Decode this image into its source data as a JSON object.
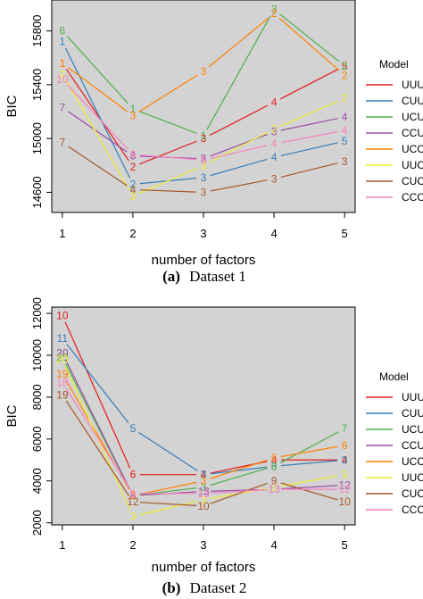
{
  "captions": [
    {
      "tag": "(a)",
      "text": "Dataset 1"
    },
    {
      "tag": "(b)",
      "text": "Dataset 2"
    }
  ],
  "legend": {
    "title": "Model",
    "entries": [
      {
        "name": "UUU",
        "color": "#e41a1c"
      },
      {
        "name": "CUU",
        "color": "#377eb8"
      },
      {
        "name": "UCU",
        "color": "#4daf4a"
      },
      {
        "name": "CCU",
        "color": "#984ea3"
      },
      {
        "name": "UCC",
        "color": "#ff7f00"
      },
      {
        "name": "UUC",
        "color": "#eeee33"
      },
      {
        "name": "CUC",
        "color": "#a65628"
      },
      {
        "name": "CCC",
        "color": "#f781bf"
      }
    ]
  },
  "chart_data": [
    {
      "type": "line",
      "panel": "Dataset 1",
      "xlabel": "number of factors",
      "ylabel": "BIC",
      "x": [
        1,
        2,
        3,
        4,
        5
      ],
      "xlim": [
        0.85,
        5.15
      ],
      "ylim": [
        14450,
        16030
      ],
      "yticks": [
        14600,
        15000,
        15400,
        15800
      ],
      "grid": false,
      "legend_position": "right",
      "series": [
        {
          "name": "UUU",
          "values": [
            15560,
            14790,
            15000,
            15270,
            15540
          ],
          "point_labels": [
            "1",
            "2",
            "3",
            "4",
            "5"
          ]
        },
        {
          "name": "CUU",
          "values": [
            15720,
            14660,
            14710,
            14860,
            14980
          ],
          "point_labels": [
            "1",
            "2",
            "3",
            "4",
            "5"
          ]
        },
        {
          "name": "UCU",
          "values": [
            15800,
            15220,
            15020,
            15960,
            15540
          ],
          "point_labels": [
            "6",
            "1",
            "1",
            "3",
            "2"
          ]
        },
        {
          "name": "CCU",
          "values": [
            15230,
            14870,
            14850,
            15050,
            15160
          ],
          "point_labels": [
            "7",
            "8",
            "3",
            "3",
            "4"
          ]
        },
        {
          "name": "UCC",
          "values": [
            15560,
            15170,
            15500,
            15930,
            15470
          ],
          "point_labels": [
            "1",
            "3",
            "3",
            "2",
            "2"
          ]
        },
        {
          "name": "UUC",
          "values": [
            15480,
            14570,
            14800,
            15070,
            15300
          ],
          "point_labels": [
            "2",
            "3",
            "3",
            "2",
            "2"
          ]
        },
        {
          "name": "CUC",
          "values": [
            14970,
            14620,
            14600,
            14700,
            14830
          ],
          "point_labels": [
            "7",
            "4",
            "3",
            "3",
            "3"
          ]
        },
        {
          "name": "CCC",
          "values": [
            15440,
            14880,
            14840,
            14960,
            15060
          ],
          "point_labels": [
            "10",
            "6",
            "5",
            "4",
            "4"
          ]
        }
      ]
    },
    {
      "type": "line",
      "panel": "Dataset 2",
      "xlabel": "number of factors",
      "ylabel": "BIC",
      "x": [
        1,
        2,
        3,
        4,
        5
      ],
      "xlim": [
        0.85,
        5.15
      ],
      "ylim": [
        1900,
        12300
      ],
      "yticks": [
        2000,
        4000,
        6000,
        8000,
        10000,
        12000
      ],
      "grid": false,
      "legend_position": "right",
      "series": [
        {
          "name": "UUU",
          "values": [
            11900,
            4300,
            4300,
            5000,
            5000
          ],
          "point_labels": [
            "10",
            "6",
            "4",
            "4",
            "4"
          ]
        },
        {
          "name": "CUU",
          "values": [
            10800,
            6500,
            4300,
            4700,
            5000
          ],
          "point_labels": [
            "11",
            "5",
            "3",
            "3",
            "3"
          ]
        },
        {
          "name": "UCU",
          "values": [
            9900,
            3300,
            3700,
            4700,
            6500
          ],
          "point_labels": [
            "20",
            "2",
            "3",
            "6",
            "7"
          ]
        },
        {
          "name": "CCU",
          "values": [
            10100,
            3300,
            3500,
            3600,
            3800
          ],
          "point_labels": [
            "20",
            "8",
            "13",
            "13",
            "12"
          ]
        },
        {
          "name": "UCC",
          "values": [
            9100,
            3300,
            4000,
            5100,
            5700
          ],
          "point_labels": [
            "19",
            "2",
            "3",
            "5",
            "6"
          ]
        },
        {
          "name": "UUC",
          "values": [
            9800,
            2300,
            3100,
            3700,
            4300
          ],
          "point_labels": [
            "20",
            "3",
            "3",
            "3",
            "3"
          ]
        },
        {
          "name": "CUC",
          "values": [
            8100,
            3000,
            2800,
            4000,
            3000
          ],
          "point_labels": [
            "19",
            "12",
            "10",
            "9",
            "10"
          ]
        },
        {
          "name": "CCC",
          "values": [
            8700,
            3400,
            3400,
            3600,
            3600
          ],
          "point_labels": [
            "18",
            "8",
            "13",
            "13",
            "12"
          ]
        }
      ]
    }
  ]
}
